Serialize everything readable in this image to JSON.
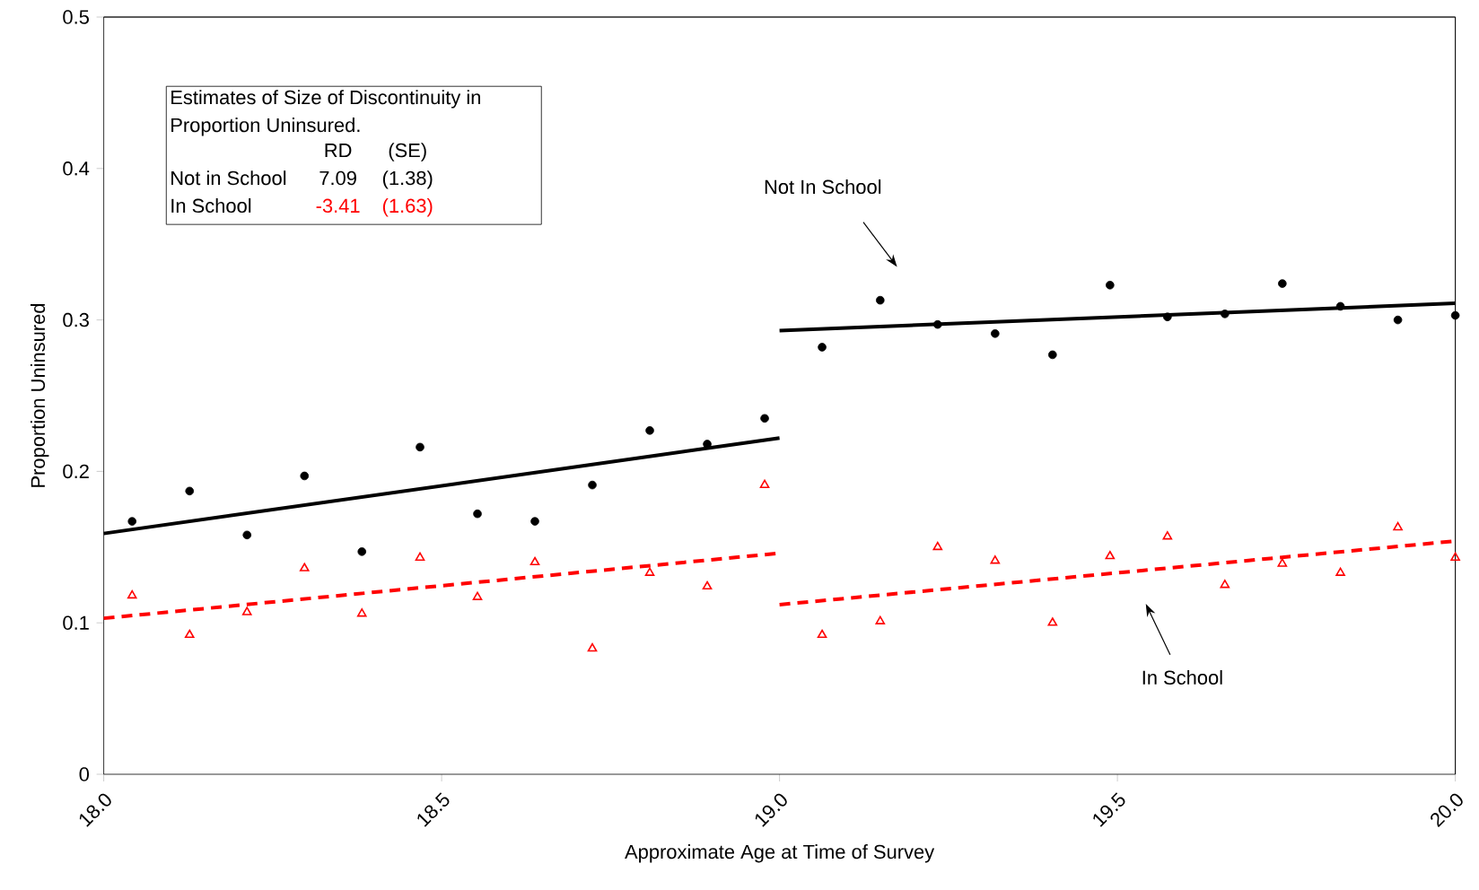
{
  "chart_data": {
    "type": "scatter",
    "xlabel": "Approximate Age at Time of Survey",
    "ylabel": "Proportion Uninsured",
    "xlim": [
      18,
      20
    ],
    "ylim": [
      0,
      0.5
    ],
    "xticks": [
      {
        "value": 18,
        "label": "18.0"
      },
      {
        "value": 18.5,
        "label": "18.5"
      },
      {
        "value": 19,
        "label": "19.0"
      },
      {
        "value": 19.5,
        "label": "19.5"
      },
      {
        "value": 20,
        "label": "20.0"
      }
    ],
    "yticks": [
      0,
      0.1,
      0.2,
      0.3,
      0.4,
      0.5
    ],
    "grid": false,
    "series": [
      {
        "marker": "circle",
        "color": "#000000",
        "x": [
          18.042,
          18.127,
          18.212,
          18.297,
          18.382,
          18.468,
          18.553,
          18.638,
          18.723,
          18.808,
          18.893,
          18.978,
          19.063,
          19.149,
          19.234,
          19.319,
          19.404,
          19.489,
          19.574,
          19.659,
          19.744,
          19.83,
          19.915,
          20.0
        ],
        "values": [
          0.167,
          0.187,
          0.158,
          0.197,
          0.147,
          0.216,
          0.172,
          0.167,
          0.191,
          0.227,
          0.218,
          0.235,
          0.282,
          0.313,
          0.297,
          0.291,
          0.277,
          0.323,
          0.302,
          0.304,
          0.324,
          0.309,
          0.3,
          0.303
        ]
      },
      {
        "marker": "triangle",
        "color": "#ff0000",
        "x": [
          18.042,
          18.127,
          18.212,
          18.297,
          18.382,
          18.468,
          18.553,
          18.638,
          18.723,
          18.808,
          18.893,
          18.978,
          19.063,
          19.149,
          19.234,
          19.319,
          19.404,
          19.489,
          19.574,
          19.659,
          19.744,
          19.83,
          19.915,
          20.0
        ],
        "values": [
          0.118,
          0.092,
          0.107,
          0.136,
          0.106,
          0.143,
          0.117,
          0.14,
          0.083,
          0.133,
          0.124,
          0.191,
          0.092,
          0.101,
          0.15,
          0.141,
          0.1,
          0.144,
          0.157,
          0.125,
          0.139,
          0.133,
          0.163,
          0.143
        ]
      },
      {
        "type": "line",
        "line_style": "solid",
        "color": "#000000",
        "x": [
          18,
          19
        ],
        "values": [
          0.159,
          0.222
        ]
      },
      {
        "type": "line",
        "line_style": "solid",
        "color": "#000000",
        "x": [
          19,
          20
        ],
        "values": [
          0.293,
          0.311
        ]
      },
      {
        "type": "line",
        "line_style": "dashed",
        "color": "#ff0000",
        "x": [
          18,
          19
        ],
        "values": [
          0.103,
          0.146
        ]
      },
      {
        "type": "line",
        "line_style": "dashed",
        "color": "#ff0000",
        "x": [
          19,
          20
        ],
        "values": [
          0.112,
          0.154
        ]
      }
    ],
    "annotations": [
      "Estimates of Size of Discontinuity in Proportion Uninsured.",
      "RD",
      "(SE)",
      "Not in School",
      "7.09",
      "(1.38)",
      "In School",
      "-3.41",
      "(1.63)",
      "Not In School",
      "In School"
    ]
  }
}
